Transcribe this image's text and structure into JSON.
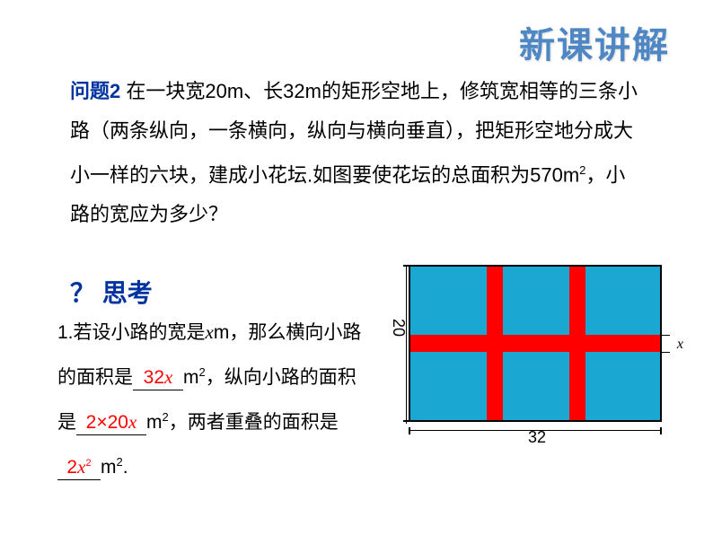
{
  "header": {
    "title": "新课讲解",
    "color": "#4e87c4"
  },
  "problem": {
    "label": "问题2",
    "text_part1": " 在一块宽20m、长32m的矩形空地上，修筑宽相等的三条小路（两条纵向，一条横向，纵向与横向垂直），把矩形空地分成大小一样的六块，建成小花坛.如图要使花坛的总面积为570m",
    "text_part2": "，小路的宽应为多少？",
    "sup": "2"
  },
  "think": {
    "q_mark": "？",
    "title": "思考"
  },
  "question1": {
    "prefix": "1.若设小路的宽是",
    "var1": "x",
    "part1b": "m，那么横向小路的面积是",
    "blank1": "32",
    "blank1_var": "x",
    "part2": "m",
    "part2b": "，纵向小路的面积是",
    "blank2": "2×20",
    "blank2_var": "x",
    "part3": "m",
    "part3b": "，两者重叠的面积是",
    "blank3": "2",
    "blank3_var": "x",
    "blank3_sup": "2",
    "part4": "m",
    "part4b": ".",
    "sup": "2"
  },
  "diagram": {
    "background_color": "#1aa7d2",
    "road_color": "#ff0000",
    "border_color": "#000000",
    "width_label": "32",
    "height_label": "20",
    "x_label": "x",
    "h_road": {
      "top_pct": 44.5,
      "height_pct": 11
    },
    "v_road1": {
      "left_pct": 30.5,
      "width_pct": 6.5
    },
    "v_road2": {
      "left_pct": 63.5,
      "width_pct": 6.5
    }
  }
}
